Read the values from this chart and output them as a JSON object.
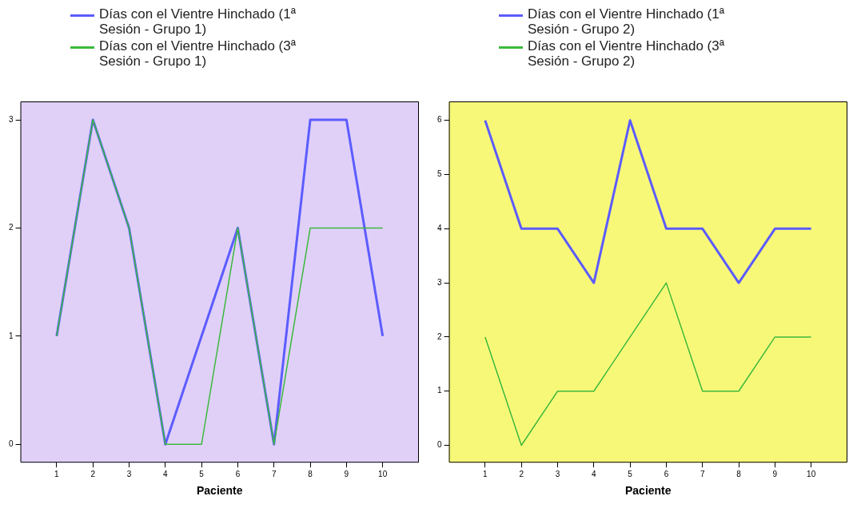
{
  "chart_data": [
    {
      "type": "line",
      "xlabel": "Paciente",
      "x": [
        1,
        2,
        3,
        4,
        5,
        6,
        7,
        8,
        9,
        10
      ],
      "xlim": [
        0,
        11
      ],
      "xticks": [
        1,
        2,
        3,
        4,
        5,
        6,
        7,
        8,
        9,
        10
      ],
      "ylim": [
        -0.17,
        3.17
      ],
      "yticks": [
        0,
        1,
        2,
        3
      ],
      "grid": false,
      "legend": "top left",
      "marker": "none",
      "series": [
        {
          "name": "Días con el Vientre Hinchado (1ª Sesión - Grupo 1)",
          "color": "#5c5cff",
          "values": [
            1,
            3,
            2,
            0,
            1,
            2,
            0,
            3,
            3,
            1
          ]
        },
        {
          "name": "Días con el Vientre Hinchado (3ª Sesión - Grupo 1)",
          "color": "#3cb93c",
          "values": [
            1,
            3,
            2,
            0,
            0,
            2,
            0,
            2,
            2,
            2
          ]
        }
      ]
    },
    {
      "type": "line",
      "xlabel": "Paciente",
      "x": [
        1,
        2,
        3,
        4,
        5,
        6,
        7,
        8,
        9,
        10
      ],
      "xlim": [
        0,
        11
      ],
      "xticks": [
        1,
        2,
        3,
        4,
        5,
        6,
        7,
        8,
        9,
        10
      ],
      "ylim": [
        -0.32,
        6.35
      ],
      "yticks": [
        0,
        1,
        2,
        3,
        4,
        5,
        6
      ],
      "grid": false,
      "legend": "top left",
      "marker": "none",
      "series": [
        {
          "name": "Días con el Vientre Hinchado (1ª Sesión - Grupo 2)",
          "color": "#5c5cff",
          "values": [
            6,
            4,
            4,
            3,
            6,
            4,
            4,
            3,
            4,
            4
          ]
        },
        {
          "name": "Días con el Vientre Hinchado (3ª Sesión - Grupo 2)",
          "color": "#3cb93c",
          "values": [
            2,
            0,
            1,
            1,
            2,
            3,
            1,
            1,
            2,
            2
          ]
        }
      ]
    }
  ]
}
